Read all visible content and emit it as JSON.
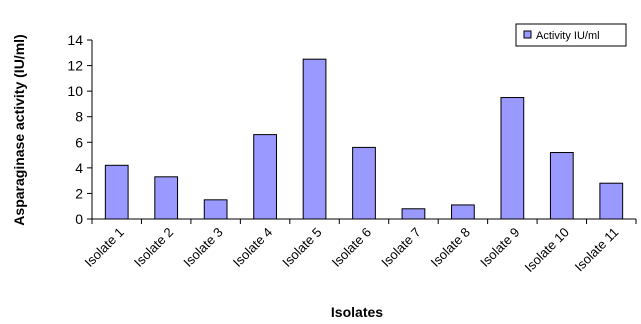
{
  "chart_data": {
    "type": "bar",
    "categories": [
      "Isolate 1",
      "Isolate 2",
      "Isolate 3",
      "Isolate 4",
      "Isolate 5",
      "Isolate 6",
      "Isolate 7",
      "Isolate 8",
      "Isolate 9",
      "Isolate 10",
      "Isolate 11"
    ],
    "series": [
      {
        "name": "Activity IU/ml",
        "values": [
          4.2,
          3.3,
          1.5,
          6.6,
          12.5,
          5.6,
          0.8,
          1.1,
          9.5,
          5.2,
          2.8
        ]
      }
    ],
    "xlabel": "Isolates",
    "ylabel": "Asparaginase activity (IU/ml)",
    "ylim": [
      0,
      14
    ],
    "yticks": [
      0,
      2,
      4,
      6,
      8,
      10,
      12,
      14
    ],
    "grid": false,
    "legend_position": "top-right",
    "colors": {
      "bar_fill": "#9999ff",
      "bar_stroke": "#000000"
    }
  }
}
